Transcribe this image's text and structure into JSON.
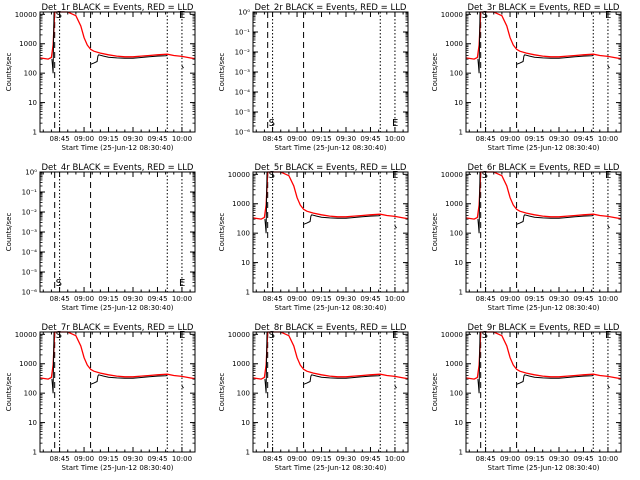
{
  "chart_data": {
    "type": "line",
    "layout": "3x3 grid",
    "x_ticks": [
      "08:45",
      "09:00",
      "09:15",
      "09:30",
      "09:45",
      "10:00"
    ],
    "x_range": [
      "08:33",
      "10:08"
    ],
    "xlabel": "Start Time (25-Jun-12 08:30:40)",
    "ylabel": "Counts/sec",
    "markers": {
      "start_label": "S",
      "end_label": "E"
    },
    "vlines": [
      {
        "time": "08:42",
        "style": "dashed"
      },
      {
        "time": "08:45",
        "style": "dotted"
      },
      {
        "time": "09:04",
        "style": "dashed"
      },
      {
        "time": "09:51",
        "style": "dotted"
      },
      {
        "time": "10:00",
        "style": "dotted"
      }
    ],
    "series_colors": {
      "events": "#000000",
      "lld": "#ff0000"
    },
    "panels": [
      {
        "title": "Det_1r BLACK = Events, RED = LLD",
        "scale": "log",
        "y_ticks": [
          "1",
          "10",
          "100",
          "1000",
          "10000"
        ],
        "ylim": [
          1,
          12000
        ],
        "has_data": true
      },
      {
        "title": "Det_2r BLACK = Events, RED = LLD",
        "scale": "log",
        "y_ticks": [
          "10⁻⁶",
          "10⁻⁵",
          "10⁻⁴",
          "10⁻³",
          "10⁻²",
          "10⁻¹",
          "10⁰"
        ],
        "ylim": [
          1e-06,
          1
        ],
        "has_data": false
      },
      {
        "title": "Det_3r BLACK = Events, RED = LLD",
        "scale": "log",
        "y_ticks": [
          "1",
          "10",
          "100",
          "1000",
          "10000"
        ],
        "ylim": [
          1,
          12000
        ],
        "has_data": true
      },
      {
        "title": "Det_4r BLACK = Events, RED = LLD",
        "scale": "log",
        "y_ticks": [
          "10⁻⁶",
          "10⁻⁵",
          "10⁻⁴",
          "10⁻³",
          "10⁻²",
          "10⁻¹",
          "10⁰"
        ],
        "ylim": [
          1e-06,
          1
        ],
        "has_data": false
      },
      {
        "title": "Det_5r BLACK = Events, RED = LLD",
        "scale": "log",
        "y_ticks": [
          "1",
          "10",
          "100",
          "1000",
          "10000"
        ],
        "ylim": [
          1,
          12000
        ],
        "has_data": true
      },
      {
        "title": "Det_6r BLACK = Events, RED = LLD",
        "scale": "log",
        "y_ticks": [
          "1",
          "10",
          "100",
          "1000",
          "10000"
        ],
        "ylim": [
          1,
          12000
        ],
        "has_data": true
      },
      {
        "title": "Det_7r BLACK = Events, RED = LLD",
        "scale": "log",
        "y_ticks": [
          "1",
          "10",
          "100",
          "1000",
          "10000"
        ],
        "ylim": [
          1,
          12000
        ],
        "has_data": true
      },
      {
        "title": "Det_8r BLACK = Events, RED = LLD",
        "scale": "log",
        "y_ticks": [
          "1",
          "10",
          "100",
          "1000",
          "10000"
        ],
        "ylim": [
          1,
          12000
        ],
        "has_data": true
      },
      {
        "title": "Det_9r BLACK = Events, RED = LLD",
        "scale": "log",
        "y_ticks": [
          "1",
          "10",
          "100",
          "1000",
          "10000"
        ],
        "ylim": [
          1,
          12000
        ],
        "has_data": true
      }
    ],
    "series": [
      {
        "key": "lld",
        "points": [
          [
            "08:33",
            330
          ],
          [
            "08:38",
            300
          ],
          [
            "08:40",
            340
          ],
          [
            "08:41",
            900
          ],
          [
            "08:42",
            12000
          ],
          [
            "08:45",
            12000
          ],
          [
            "08:50",
            12000
          ],
          [
            "08:55",
            9000
          ],
          [
            "08:58",
            4000
          ],
          [
            "09:00",
            1600
          ],
          [
            "09:02",
            900
          ],
          [
            "09:04",
            650
          ],
          [
            "09:06",
            560
          ],
          [
            "09:10",
            480
          ],
          [
            "09:15",
            420
          ],
          [
            "09:20",
            380
          ],
          [
            "09:25",
            360
          ],
          [
            "09:30",
            360
          ],
          [
            "09:35",
            380
          ],
          [
            "09:40",
            400
          ],
          [
            "09:45",
            420
          ],
          [
            "09:51",
            440
          ],
          [
            "09:55",
            400
          ],
          [
            "10:00",
            370
          ],
          [
            "10:05",
            330
          ],
          [
            "10:08",
            310
          ]
        ]
      },
      {
        "key": "events",
        "segments": [
          [
            [
              "08:40.3",
              300
            ],
            [
              "08:40.6",
              200
            ],
            [
              "08:41",
              100
            ],
            [
              "08:41.3",
              1000
            ],
            [
              "08:41.6",
              12000
            ]
          ],
          [
            [
              "09:04",
              200
            ],
            [
              "09:06",
              220
            ],
            [
              "09:08",
              250
            ],
            [
              "09:08.5",
              380
            ],
            [
              "09:09",
              420
            ],
            [
              "09:12",
              380
            ],
            [
              "09:15",
              350
            ],
            [
              "09:20",
              330
            ],
            [
              "09:25",
              320
            ],
            [
              "09:30",
              320
            ],
            [
              "09:35",
              340
            ],
            [
              "09:40",
              360
            ],
            [
              "09:45",
              380
            ],
            [
              "09:50",
              390
            ],
            [
              "09:51",
              400
            ]
          ],
          [
            [
              "10:00",
              180
            ],
            [
              "10:00.5",
              160
            ],
            [
              "10:01",
              150
            ]
          ]
        ]
      }
    ]
  }
}
